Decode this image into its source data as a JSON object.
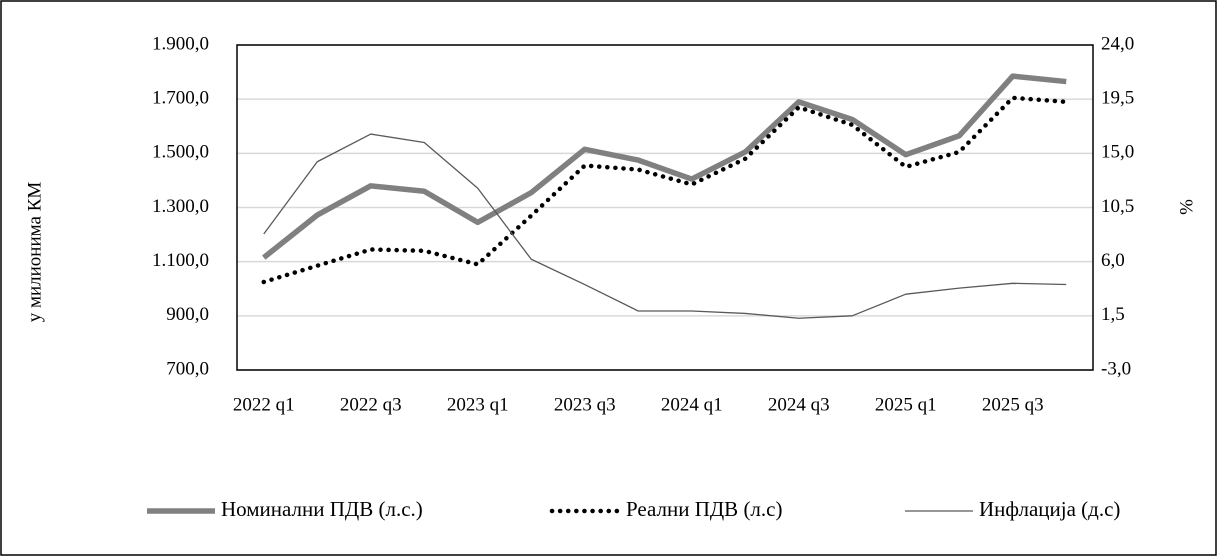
{
  "chart_data": {
    "type": "line",
    "y_label": "у милионима КМ",
    "y2_label": "%",
    "categories": [
      "2022 q1",
      null,
      "2022 q3",
      null,
      "2023 q1",
      null,
      "2023 q3",
      null,
      "2024 q1",
      null,
      "2024 q3",
      null,
      "2025 q1",
      null,
      "2025 q3",
      null
    ],
    "series": [
      {
        "name": "Номинални ПДВ (л.с.)",
        "color": "#808080",
        "values": [
          1115,
          1272,
          1380,
          1360,
          1245,
          1355,
          1515,
          1475,
          1405,
          1505,
          1690,
          1625,
          1495,
          1565,
          1785,
          1765
        ]
      },
      {
        "name": "Реални ПДВ (л.с)",
        "color": "#000000",
        "values": [
          1025,
          1085,
          1145,
          1140,
          1090,
          1270,
          1455,
          1440,
          1385,
          1480,
          1670,
          1605,
          1450,
          1505,
          1705,
          1690
        ]
      },
      {
        "name": "Инфлација (д.с)",
        "color": "#595959",
        "axis": "y2",
        "values": [
          8.3,
          14.3,
          16.6,
          15.9,
          12.1,
          6.2,
          4.1,
          1.9,
          1.9,
          1.7,
          1.3,
          1.5,
          3.3,
          3.8,
          4.2,
          4.1
        ]
      }
    ],
    "ylim": [
      700,
      1900
    ],
    "yticks": [
      {
        "value": 700,
        "label": "700,0"
      },
      {
        "value": 900,
        "label": "900,0"
      },
      {
        "value": 1100,
        "label": "1.100,0"
      },
      {
        "value": 1300,
        "label": "1.300,0"
      },
      {
        "value": 1500,
        "label": "1.500,0"
      },
      {
        "value": 1700,
        "label": "1.700,0"
      },
      {
        "value": 1900,
        "label": "1.900,0"
      }
    ],
    "y2lim": [
      -3,
      24
    ],
    "y2ticks": [
      {
        "value": -3,
        "label": "-3,0"
      },
      {
        "value": 1.5,
        "label": "1,5"
      },
      {
        "value": 6,
        "label": "6,0"
      },
      {
        "value": 10.5,
        "label": "10,5"
      },
      {
        "value": 15,
        "label": "15,0"
      },
      {
        "value": 19.5,
        "label": "19,5"
      },
      {
        "value": 24,
        "label": "24,0"
      }
    ],
    "grid": true,
    "legend": "bottom"
  }
}
